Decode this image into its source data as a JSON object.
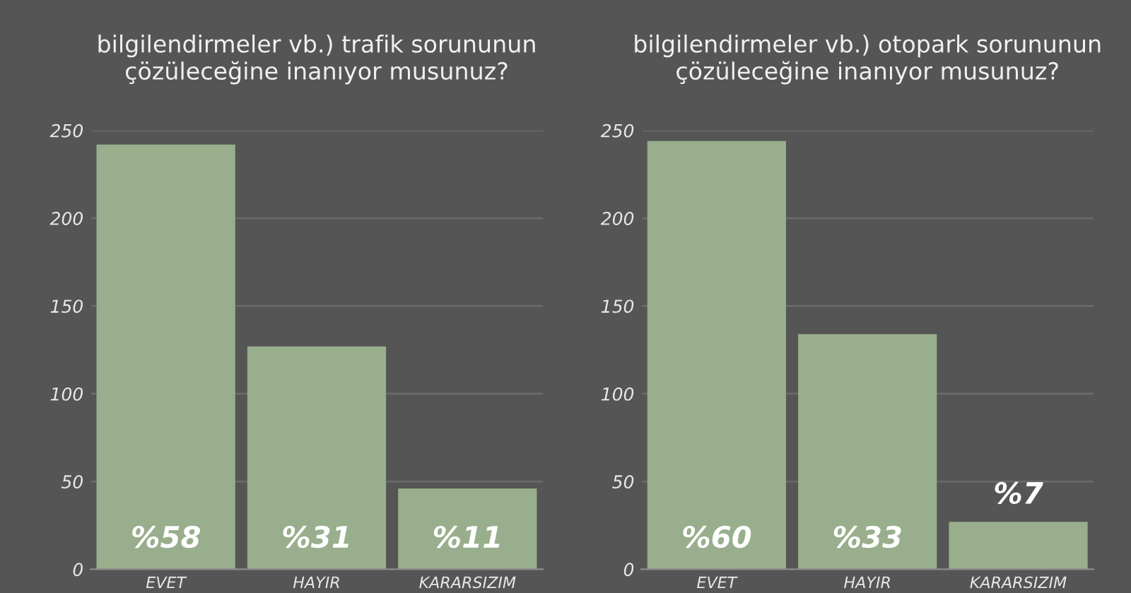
{
  "chart_data": [
    {
      "type": "bar",
      "title": "bilgilendirmeler vb.) trafik sorununun\nçözüleceğine inanıyor musunuz?",
      "categories": [
        "EVET",
        "HAYIR",
        "KARARSIZIM"
      ],
      "values": [
        242,
        127,
        46
      ],
      "color": "#98ae8c",
      "ylim": [
        0,
        250
      ],
      "yticks": [
        0,
        50,
        100,
        150,
        200,
        250
      ],
      "grid": "y",
      "annotations": [
        "%58",
        "%31",
        "%11"
      ]
    },
    {
      "type": "bar",
      "title": "bilgilendirmeler vb.) otopark sorununun\nçözüleceğine inanıyor musunuz?",
      "categories": [
        "EVET",
        "HAYIR",
        "KARARSIZIM"
      ],
      "values": [
        244,
        134,
        27
      ],
      "color": "#98ae8c",
      "ylim": [
        0,
        250
      ],
      "yticks": [
        0,
        50,
        100,
        150,
        200,
        250
      ],
      "grid": "y",
      "annotations": [
        "%60",
        "%33",
        "%7"
      ]
    }
  ]
}
